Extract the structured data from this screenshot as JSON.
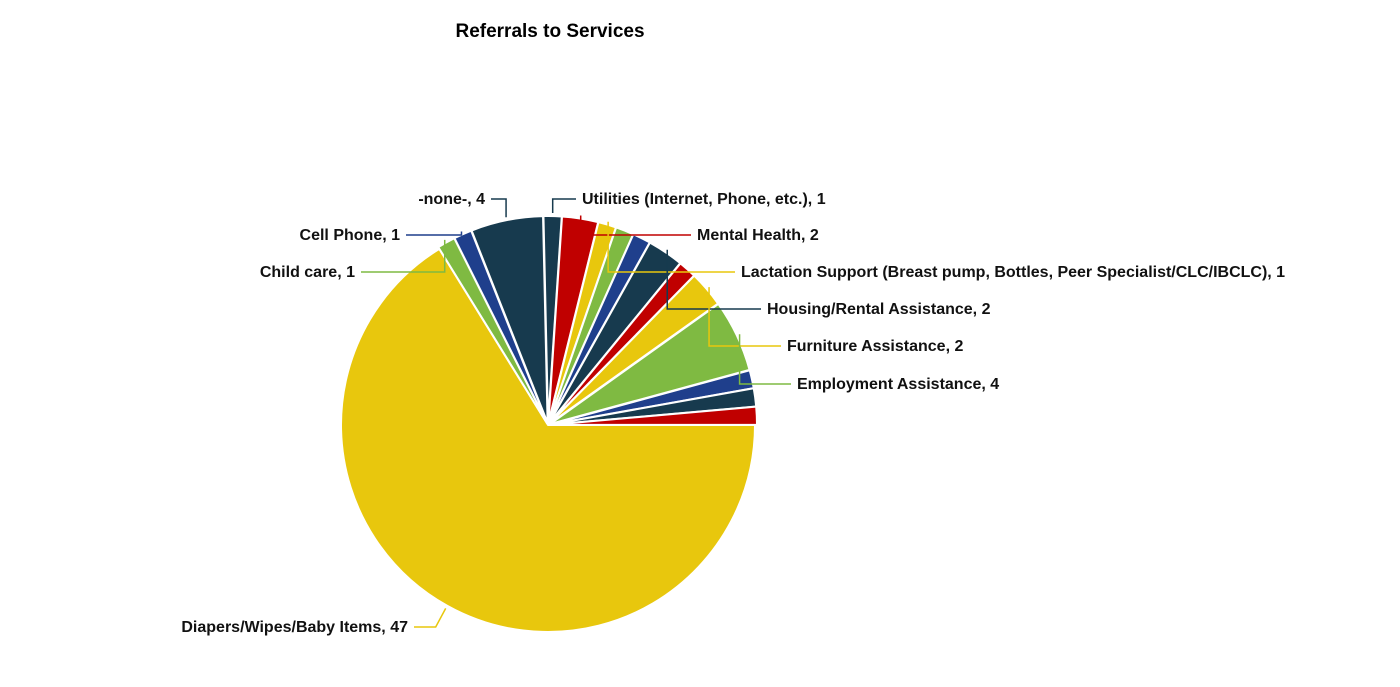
{
  "chart_data": {
    "type": "pie",
    "title": "Referrals to Services",
    "legend": "none",
    "label_format": "{category}, {value}",
    "slices": [
      {
        "category": "Diapers/Wipes/Baby Items",
        "value": 47,
        "color": "#E8C70D"
      },
      {
        "category": "Child care",
        "value": 1,
        "color": "#7FBA42"
      },
      {
        "category": "Cell Phone",
        "value": 1,
        "color": "#1F3F8C"
      },
      {
        "category": "-none-",
        "value": 4,
        "color": "#173A4E"
      },
      {
        "category": "Utilities (Internet, Phone, etc.)",
        "value": 1,
        "color": "#173A4E"
      },
      {
        "category": "Mental Health",
        "value": 2,
        "color": "#C00000"
      },
      {
        "category": "Lactation Support (Breast pump, Bottles, Peer Specialist/CLC/IBCLC)",
        "value": 1,
        "color": "#E8C70D"
      },
      {
        "category": "",
        "value": 1,
        "color": "#7FBA42"
      },
      {
        "category": "",
        "value": 1,
        "color": "#1F3F8C"
      },
      {
        "category": "Housing/Rental Assistance",
        "value": 2,
        "color": "#173A4E"
      },
      {
        "category": "",
        "value": 1,
        "color": "#C00000"
      },
      {
        "category": "Furniture Assistance",
        "value": 2,
        "color": "#E8C70D"
      },
      {
        "category": "Employment Assistance",
        "value": 4,
        "color": "#7FBA42"
      },
      {
        "category": "",
        "value": 1,
        "color": "#1F3F8C"
      },
      {
        "category": "",
        "value": 1,
        "color": "#173A4E"
      },
      {
        "category": "",
        "value": 1,
        "color": "#C00000"
      }
    ]
  }
}
